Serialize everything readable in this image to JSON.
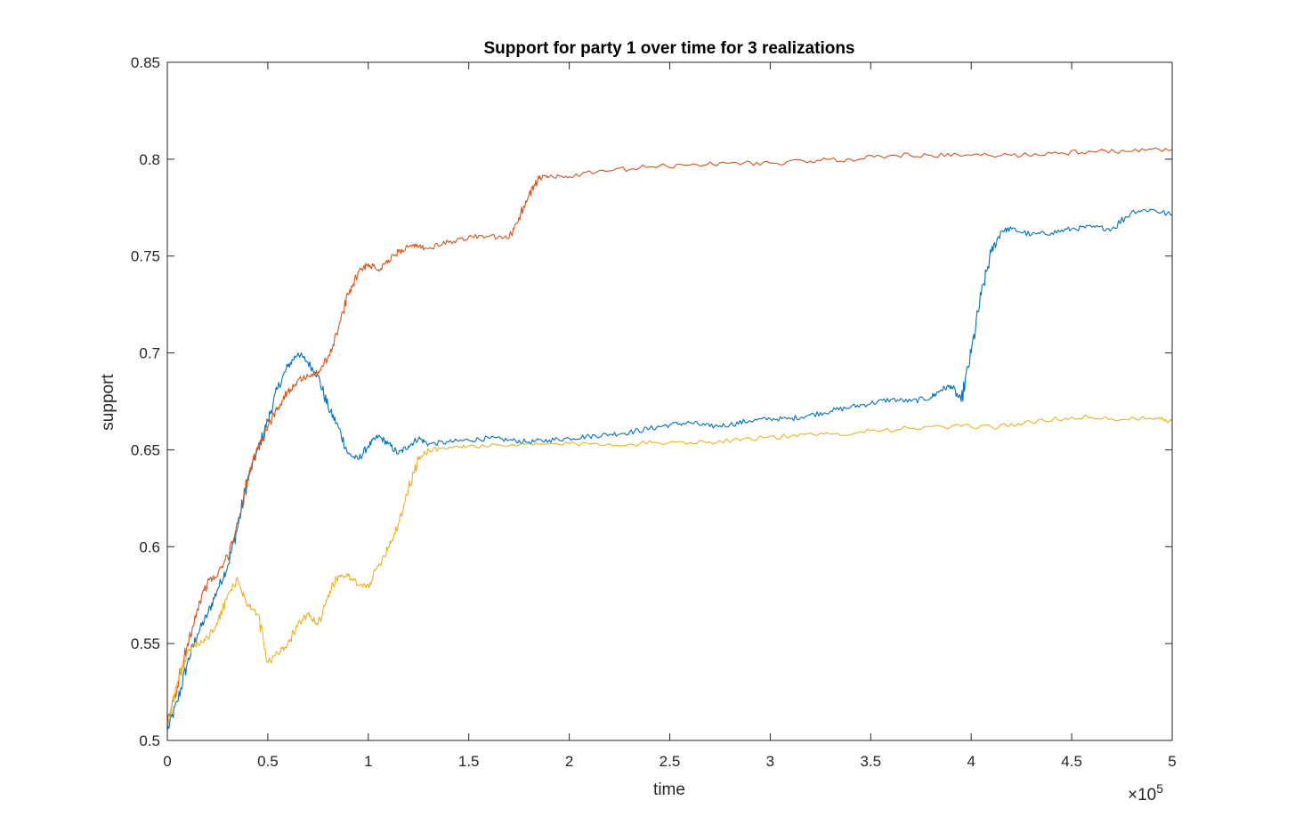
{
  "chart_data": {
    "type": "line",
    "title": "Support for party 1 over time for 3 realizations",
    "xlabel": "time",
    "ylabel": "support",
    "xlim": [
      0,
      500000
    ],
    "ylim": [
      0.5,
      0.85
    ],
    "x_exponent_label": "×10",
    "x_exponent_power": "5",
    "x_ticks": [
      0,
      50000,
      100000,
      150000,
      200000,
      250000,
      300000,
      350000,
      400000,
      450000,
      500000
    ],
    "x_tick_labels": [
      "0",
      "0.5",
      "1",
      "1.5",
      "2",
      "2.5",
      "3",
      "3.5",
      "4",
      "4.5",
      "5"
    ],
    "y_ticks": [
      0.5,
      0.55,
      0.6,
      0.65,
      0.7,
      0.75,
      0.8,
      0.85
    ],
    "y_tick_labels": [
      "0.5",
      "0.55",
      "0.6",
      "0.65",
      "0.7",
      "0.75",
      "0.8",
      "0.85"
    ],
    "grid": false,
    "legend": "none",
    "series": [
      {
        "color": "#0072BD",
        "x": [
          0,
          5000,
          10000,
          15000,
          20000,
          25000,
          30000,
          35000,
          40000,
          45000,
          50000,
          55000,
          60000,
          65000,
          70000,
          75000,
          80000,
          85000,
          90000,
          95000,
          100000,
          105000,
          110000,
          115000,
          120000,
          125000,
          130000,
          140000,
          150000,
          160000,
          170000,
          180000,
          190000,
          200000,
          210000,
          220000,
          230000,
          240000,
          250000,
          260000,
          270000,
          280000,
          290000,
          300000,
          310000,
          320000,
          330000,
          340000,
          350000,
          360000,
          370000,
          380000,
          385000,
          390000,
          395000,
          400000,
          405000,
          410000,
          415000,
          420000,
          430000,
          440000,
          450000,
          460000,
          470000,
          480000,
          490000,
          500000
        ],
        "y": [
          0.505,
          0.52,
          0.54,
          0.555,
          0.565,
          0.578,
          0.59,
          0.61,
          0.635,
          0.65,
          0.665,
          0.682,
          0.693,
          0.7,
          0.695,
          0.688,
          0.672,
          0.662,
          0.648,
          0.645,
          0.652,
          0.657,
          0.653,
          0.648,
          0.652,
          0.656,
          0.653,
          0.654,
          0.655,
          0.656,
          0.655,
          0.654,
          0.655,
          0.656,
          0.657,
          0.658,
          0.659,
          0.661,
          0.663,
          0.664,
          0.662,
          0.663,
          0.665,
          0.666,
          0.666,
          0.668,
          0.67,
          0.672,
          0.674,
          0.676,
          0.675,
          0.677,
          0.681,
          0.683,
          0.675,
          0.7,
          0.73,
          0.752,
          0.763,
          0.764,
          0.761,
          0.762,
          0.764,
          0.765,
          0.764,
          0.773,
          0.774,
          0.771
        ]
      },
      {
        "color": "#D95319",
        "x": [
          0,
          5000,
          10000,
          15000,
          20000,
          25000,
          30000,
          35000,
          40000,
          45000,
          50000,
          55000,
          60000,
          65000,
          70000,
          75000,
          80000,
          85000,
          90000,
          95000,
          100000,
          105000,
          110000,
          115000,
          120000,
          125000,
          130000,
          140000,
          150000,
          160000,
          170000,
          175000,
          180000,
          185000,
          190000,
          200000,
          220000,
          240000,
          260000,
          280000,
          300000,
          320000,
          340000,
          360000,
          380000,
          400000,
          420000,
          440000,
          460000,
          480000,
          500000
        ],
        "y": [
          0.508,
          0.528,
          0.55,
          0.568,
          0.582,
          0.585,
          0.595,
          0.612,
          0.635,
          0.65,
          0.662,
          0.672,
          0.68,
          0.686,
          0.688,
          0.69,
          0.698,
          0.712,
          0.73,
          0.742,
          0.746,
          0.743,
          0.748,
          0.752,
          0.755,
          0.755,
          0.754,
          0.757,
          0.76,
          0.76,
          0.759,
          0.77,
          0.782,
          0.79,
          0.791,
          0.791,
          0.794,
          0.796,
          0.797,
          0.798,
          0.798,
          0.799,
          0.8,
          0.802,
          0.802,
          0.802,
          0.802,
          0.803,
          0.804,
          0.804,
          0.805
        ]
      },
      {
        "color": "#EDB120",
        "x": [
          0,
          5000,
          10000,
          15000,
          20000,
          25000,
          30000,
          35000,
          40000,
          45000,
          50000,
          55000,
          60000,
          65000,
          70000,
          75000,
          80000,
          85000,
          90000,
          95000,
          100000,
          105000,
          110000,
          115000,
          120000,
          125000,
          130000,
          140000,
          150000,
          170000,
          190000,
          210000,
          230000,
          250000,
          270000,
          290000,
          310000,
          330000,
          350000,
          370000,
          390000,
          410000,
          430000,
          450000,
          470000,
          490000,
          500000
        ],
        "y": [
          0.508,
          0.53,
          0.545,
          0.55,
          0.553,
          0.56,
          0.575,
          0.583,
          0.57,
          0.565,
          0.54,
          0.545,
          0.55,
          0.56,
          0.565,
          0.56,
          0.575,
          0.585,
          0.585,
          0.58,
          0.58,
          0.59,
          0.6,
          0.612,
          0.63,
          0.645,
          0.65,
          0.651,
          0.652,
          0.652,
          0.653,
          0.653,
          0.653,
          0.654,
          0.654,
          0.656,
          0.657,
          0.658,
          0.66,
          0.661,
          0.662,
          0.662,
          0.664,
          0.667,
          0.666,
          0.666,
          0.665
        ]
      }
    ]
  }
}
